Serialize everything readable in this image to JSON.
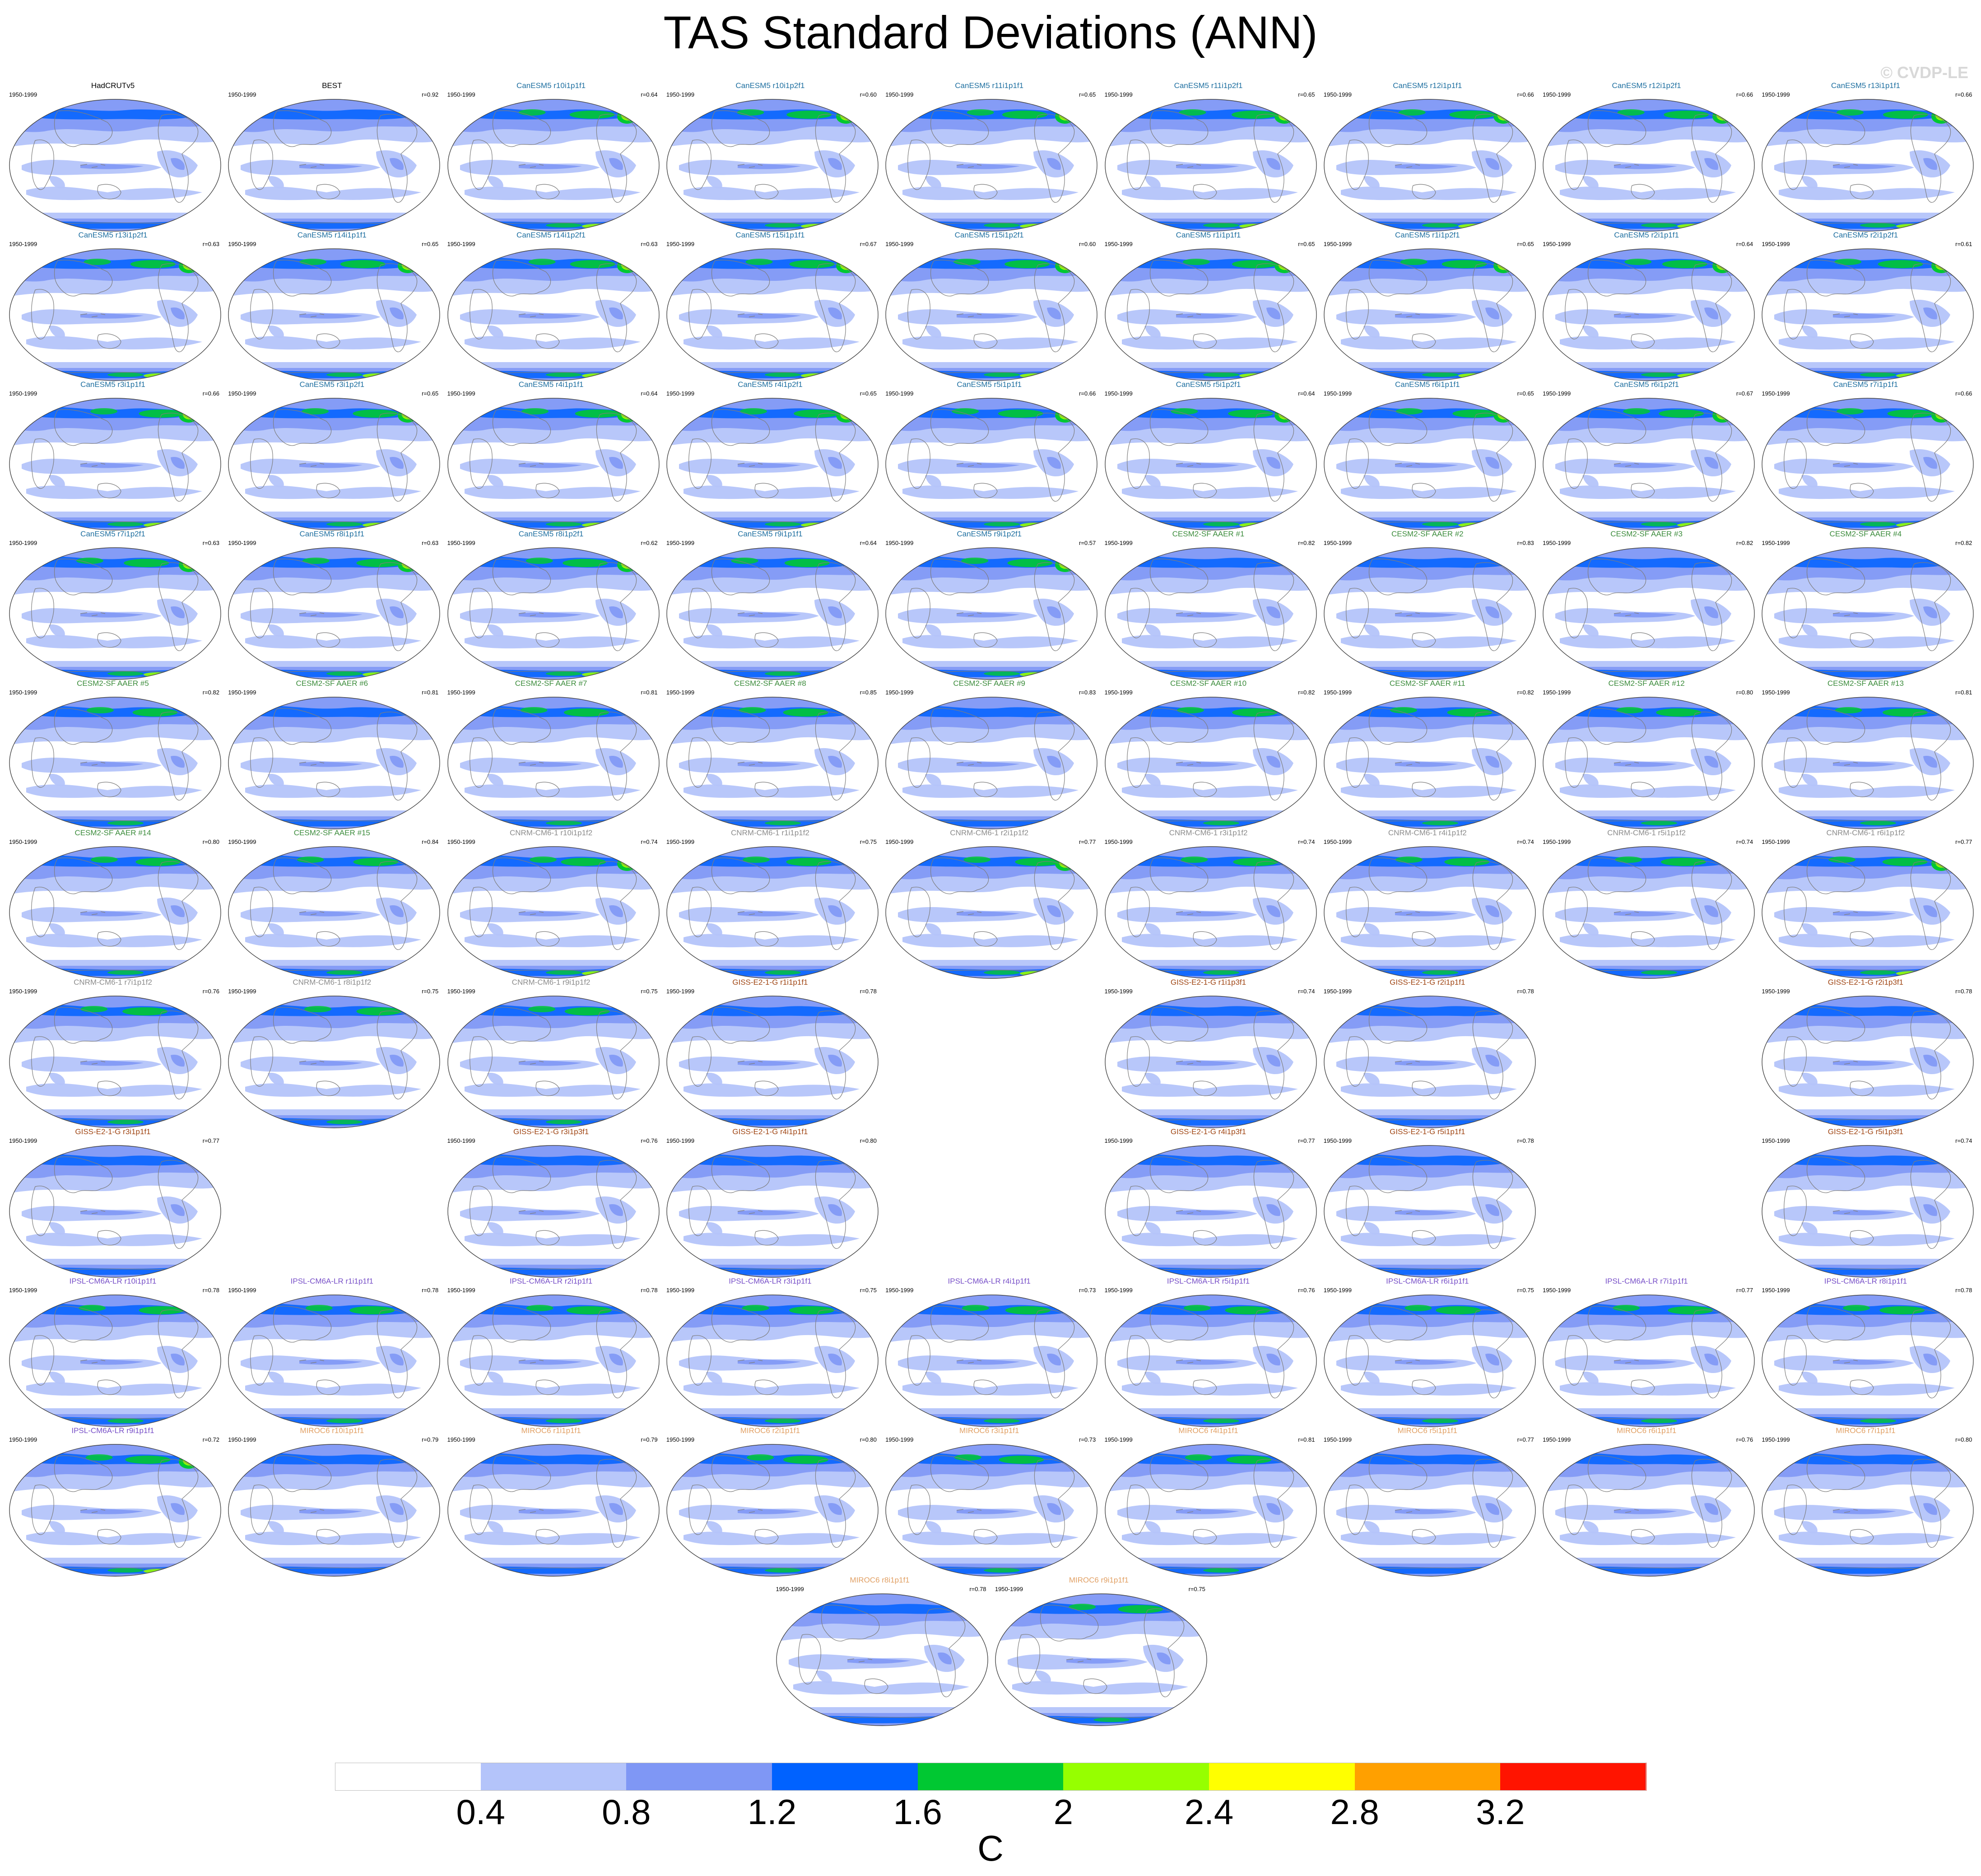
{
  "title": "TAS Standard Deviations (ANN)",
  "copyright": "© CVDP-LE",
  "units": "C",
  "colorbar": {
    "labels": [
      "0.4",
      "0.8",
      "1.2",
      "1.6",
      "2",
      "2.4",
      "2.8",
      "3.2"
    ],
    "colors": [
      "#ffffff",
      "#b4c4fa",
      "#7f97f5",
      "#0062ff",
      "#00c832",
      "#96ff00",
      "#ffff00",
      "#ffa000",
      "#ff1400"
    ]
  },
  "group_colors": {
    "obs": "#000000",
    "canesm5": "#1e6fa0",
    "cesm2": "#3c8c3c",
    "cnrm": "#8c8c8c",
    "giss": "#a04614",
    "ipsl": "#7850c8",
    "miroc6": "#e1a064"
  },
  "panels": [
    {
      "title": "HadCRUTv5",
      "years": "1950-1999",
      "r": "",
      "group": "obs",
      "row": 0,
      "col": 0,
      "hot": 0
    },
    {
      "title": "BEST",
      "years": "1950-1999",
      "r": "r=0.92",
      "group": "obs",
      "row": 0,
      "col": 1,
      "hot": 0
    },
    {
      "title": "CanESM5 r10i1p1f1",
      "years": "1950-1999",
      "r": "r=0.64",
      "group": "canesm5",
      "row": 0,
      "col": 2,
      "hot": 2
    },
    {
      "title": "CanESM5 r10i1p2f1",
      "years": "1950-1999",
      "r": "r=0.60",
      "group": "canesm5",
      "row": 0,
      "col": 3,
      "hot": 3
    },
    {
      "title": "CanESM5 r11i1p1f1",
      "years": "1950-1999",
      "r": "r=0.65",
      "group": "canesm5",
      "row": 0,
      "col": 4,
      "hot": 2
    },
    {
      "title": "CanESM5 r11i1p2f1",
      "years": "1950-1999",
      "r": "r=0.65",
      "group": "canesm5",
      "row": 0,
      "col": 5,
      "hot": 2
    },
    {
      "title": "CanESM5 r12i1p1f1",
      "years": "1950-1999",
      "r": "r=0.66",
      "group": "canesm5",
      "row": 0,
      "col": 6,
      "hot": 2
    },
    {
      "title": "CanESM5 r12i1p2f1",
      "years": "1950-1999",
      "r": "r=0.66",
      "group": "canesm5",
      "row": 0,
      "col": 7,
      "hot": 2
    },
    {
      "title": "CanESM5 r13i1p1f1",
      "years": "1950-1999",
      "r": "r=0.66",
      "group": "canesm5",
      "row": 0,
      "col": 8,
      "hot": 3
    },
    {
      "title": "CanESM5 r13i1p2f1",
      "years": "1950-1999",
      "r": "r=0.63",
      "group": "canesm5",
      "row": 1,
      "col": 0,
      "hot": 2
    },
    {
      "title": "CanESM5 r14i1p1f1",
      "years": "1950-1999",
      "r": "r=0.65",
      "group": "canesm5",
      "row": 1,
      "col": 1,
      "hot": 2
    },
    {
      "title": "CanESM5 r14i1p2f1",
      "years": "1950-1999",
      "r": "r=0.63",
      "group": "canesm5",
      "row": 1,
      "col": 2,
      "hot": 2
    },
    {
      "title": "CanESM5 r15i1p1f1",
      "years": "1950-1999",
      "r": "r=0.67",
      "group": "canesm5",
      "row": 1,
      "col": 3,
      "hot": 2
    },
    {
      "title": "CanESM5 r15i1p2f1",
      "years": "1950-1999",
      "r": "r=0.60",
      "group": "canesm5",
      "row": 1,
      "col": 4,
      "hot": 3
    },
    {
      "title": "CanESM5 r1i1p1f1",
      "years": "1950-1999",
      "r": "r=0.65",
      "group": "canesm5",
      "row": 1,
      "col": 5,
      "hot": 2
    },
    {
      "title": "CanESM5 r1i1p2f1",
      "years": "1950-1999",
      "r": "r=0.65",
      "group": "canesm5",
      "row": 1,
      "col": 6,
      "hot": 2
    },
    {
      "title": "CanESM5 r2i1p1f1",
      "years": "1950-1999",
      "r": "r=0.64",
      "group": "canesm5",
      "row": 1,
      "col": 7,
      "hot": 3
    },
    {
      "title": "CanESM5 r2i1p2f1",
      "years": "1950-1999",
      "r": "r=0.61",
      "group": "canesm5",
      "row": 1,
      "col": 8,
      "hot": 3
    },
    {
      "title": "CanESM5 r3i1p1f1",
      "years": "1950-1999",
      "r": "r=0.66",
      "group": "canesm5",
      "row": 2,
      "col": 0,
      "hot": 2
    },
    {
      "title": "CanESM5 r3i1p2f1",
      "years": "1950-1999",
      "r": "r=0.65",
      "group": "canesm5",
      "row": 2,
      "col": 1,
      "hot": 2
    },
    {
      "title": "CanESM5 r4i1p1f1",
      "years": "1950-1999",
      "r": "r=0.64",
      "group": "canesm5",
      "row": 2,
      "col": 2,
      "hot": 2
    },
    {
      "title": "CanESM5 r4i1p2f1",
      "years": "1950-1999",
      "r": "r=0.65",
      "group": "canesm5",
      "row": 2,
      "col": 3,
      "hot": 2
    },
    {
      "title": "CanESM5 r5i1p1f1",
      "years": "1950-1999",
      "r": "r=0.66",
      "group": "canesm5",
      "row": 2,
      "col": 4,
      "hot": 2
    },
    {
      "title": "CanESM5 r5i1p2f1",
      "years": "1950-1999",
      "r": "r=0.64",
      "group": "canesm5",
      "row": 2,
      "col": 5,
      "hot": 2
    },
    {
      "title": "CanESM5 r6i1p1f1",
      "years": "1950-1999",
      "r": "r=0.65",
      "group": "canesm5",
      "row": 2,
      "col": 6,
      "hot": 2
    },
    {
      "title": "CanESM5 r6i1p2f1",
      "years": "1950-1999",
      "r": "r=0.67",
      "group": "canesm5",
      "row": 2,
      "col": 7,
      "hot": 2
    },
    {
      "title": "CanESM5 r7i1p1f1",
      "years": "1950-1999",
      "r": "r=0.66",
      "group": "canesm5",
      "row": 2,
      "col": 8,
      "hot": 2
    },
    {
      "title": "CanESM5 r7i1p2f1",
      "years": "1950-1999",
      "r": "r=0.63",
      "group": "canesm5",
      "row": 3,
      "col": 0,
      "hot": 2
    },
    {
      "title": "CanESM5 r8i1p1f1",
      "years": "1950-1999",
      "r": "r=0.63",
      "group": "canesm5",
      "row": 3,
      "col": 1,
      "hot": 2
    },
    {
      "title": "CanESM5 r8i1p2f1",
      "years": "1950-1999",
      "r": "r=0.62",
      "group": "canesm5",
      "row": 3,
      "col": 2,
      "hot": 3
    },
    {
      "title": "CanESM5 r9i1p1f1",
      "years": "1950-1999",
      "r": "r=0.64",
      "group": "canesm5",
      "row": 3,
      "col": 3,
      "hot": 1
    },
    {
      "title": "CanESM5 r9i1p2f1",
      "years": "1950-1999",
      "r": "r=0.57",
      "group": "canesm5",
      "row": 3,
      "col": 4,
      "hot": 3
    },
    {
      "title": "CESM2-SF AAER #1",
      "years": "1950-1999",
      "r": "r=0.82",
      "group": "cesm2",
      "row": 3,
      "col": 5,
      "hot": 0
    },
    {
      "title": "CESM2-SF AAER #2",
      "years": "1950-1999",
      "r": "r=0.83",
      "group": "cesm2",
      "row": 3,
      "col": 6,
      "hot": 0
    },
    {
      "title": "CESM2-SF AAER #3",
      "years": "1950-1999",
      "r": "r=0.82",
      "group": "cesm2",
      "row": 3,
      "col": 7,
      "hot": 0
    },
    {
      "title": "CESM2-SF AAER #4",
      "years": "1950-1999",
      "r": "r=0.82",
      "group": "cesm2",
      "row": 3,
      "col": 8,
      "hot": 0
    },
    {
      "title": "CESM2-SF AAER #5",
      "years": "1950-1999",
      "r": "r=0.82",
      "group": "cesm2",
      "row": 4,
      "col": 0,
      "hot": 1
    },
    {
      "title": "CESM2-SF AAER #6",
      "years": "1950-1999",
      "r": "r=0.81",
      "group": "cesm2",
      "row": 4,
      "col": 1,
      "hot": 0
    },
    {
      "title": "CESM2-SF AAER #7",
      "years": "1950-1999",
      "r": "r=0.81",
      "group": "cesm2",
      "row": 4,
      "col": 2,
      "hot": 1
    },
    {
      "title": "CESM2-SF AAER #8",
      "years": "1950-1999",
      "r": "r=0.85",
      "group": "cesm2",
      "row": 4,
      "col": 3,
      "hot": 1
    },
    {
      "title": "CESM2-SF AAER #9",
      "years": "1950-1999",
      "r": "r=0.83",
      "group": "cesm2",
      "row": 4,
      "col": 4,
      "hot": 0
    },
    {
      "title": "CESM2-SF AAER #10",
      "years": "1950-1999",
      "r": "r=0.82",
      "group": "cesm2",
      "row": 4,
      "col": 5,
      "hot": 1
    },
    {
      "title": "CESM2-SF AAER #11",
      "years": "1950-1999",
      "r": "r=0.82",
      "group": "cesm2",
      "row": 4,
      "col": 6,
      "hot": 1
    },
    {
      "title": "CESM2-SF AAER #12",
      "years": "1950-1999",
      "r": "r=0.80",
      "group": "cesm2",
      "row": 4,
      "col": 7,
      "hot": 1
    },
    {
      "title": "CESM2-SF AAER #13",
      "years": "1950-1999",
      "r": "r=0.81",
      "group": "cesm2",
      "row": 4,
      "col": 8,
      "hot": 1
    },
    {
      "title": "CESM2-SF AAER #14",
      "years": "1950-1999",
      "r": "r=0.80",
      "group": "cesm2",
      "row": 5,
      "col": 0,
      "hot": 1
    },
    {
      "title": "CESM2-SF AAER #15",
      "years": "1950-1999",
      "r": "r=0.84",
      "group": "cesm2",
      "row": 5,
      "col": 1,
      "hot": 1
    },
    {
      "title": "CNRM-CM6-1 r10i1p1f2",
      "years": "1950-1999",
      "r": "r=0.74",
      "group": "cnrm",
      "row": 5,
      "col": 2,
      "hot": 2
    },
    {
      "title": "CNRM-CM6-1 r1i1p1f2",
      "years": "1950-1999",
      "r": "r=0.75",
      "group": "cnrm",
      "row": 5,
      "col": 3,
      "hot": 1
    },
    {
      "title": "CNRM-CM6-1 r2i1p1f2",
      "years": "1950-1999",
      "r": "r=0.77",
      "group": "cnrm",
      "row": 5,
      "col": 4,
      "hot": 2
    },
    {
      "title": "CNRM-CM6-1 r3i1p1f2",
      "years": "1950-1999",
      "r": "r=0.74",
      "group": "cnrm",
      "row": 5,
      "col": 5,
      "hot": 1
    },
    {
      "title": "CNRM-CM6-1 r4i1p1f2",
      "years": "1950-1999",
      "r": "r=0.74",
      "group": "cnrm",
      "row": 5,
      "col": 6,
      "hot": 1
    },
    {
      "title": "CNRM-CM6-1 r5i1p1f2",
      "years": "1950-1999",
      "r": "r=0.74",
      "group": "cnrm",
      "row": 5,
      "col": 7,
      "hot": 1
    },
    {
      "title": "CNRM-CM6-1 r6i1p1f2",
      "years": "1950-1999",
      "r": "r=0.77",
      "group": "cnrm",
      "row": 5,
      "col": 8,
      "hot": 2
    },
    {
      "title": "CNRM-CM6-1 r7i1p1f2",
      "years": "1950-1999",
      "r": "r=0.76",
      "group": "cnrm",
      "row": 6,
      "col": 0,
      "hot": 1
    },
    {
      "title": "CNRM-CM6-1 r8i1p1f2",
      "years": "1950-1999",
      "r": "r=0.75",
      "group": "cnrm",
      "row": 6,
      "col": 1,
      "hot": 1
    },
    {
      "title": "CNRM-CM6-1 r9i1p1f2",
      "years": "1950-1999",
      "r": "r=0.75",
      "group": "cnrm",
      "row": 6,
      "col": 2,
      "hot": 1
    },
    {
      "title": "GISS-E2-1-G r1i1p1f1",
      "years": "1950-1999",
      "r": "r=0.78",
      "group": "giss",
      "row": 6,
      "col": 3,
      "hot": 0
    },
    {
      "title": "GISS-E2-1-G r1i1p3f1",
      "years": "1950-1999",
      "r": "r=0.74",
      "group": "giss",
      "row": 6,
      "col": 5,
      "hot": 0
    },
    {
      "title": "GISS-E2-1-G r2i1p1f1",
      "years": "1950-1999",
      "r": "r=0.78",
      "group": "giss",
      "row": 6,
      "col": 6,
      "hot": 0
    },
    {
      "title": "GISS-E2-1-G r2i1p3f1",
      "years": "1950-1999",
      "r": "r=0.78",
      "group": "giss",
      "row": 6,
      "col": 8,
      "hot": 0
    },
    {
      "title": "GISS-E2-1-G r3i1p1f1",
      "years": "1950-1999",
      "r": "r=0.77",
      "group": "giss",
      "row": 7,
      "col": 0,
      "hot": 0
    },
    {
      "title": "GISS-E2-1-G r3i1p3f1",
      "years": "1950-1999",
      "r": "r=0.76",
      "group": "giss",
      "row": 7,
      "col": 2,
      "hot": 0
    },
    {
      "title": "GISS-E2-1-G r4i1p1f1",
      "years": "1950-1999",
      "r": "r=0.80",
      "group": "giss",
      "row": 7,
      "col": 3,
      "hot": 0
    },
    {
      "title": "GISS-E2-1-G r4i1p3f1",
      "years": "1950-1999",
      "r": "r=0.77",
      "group": "giss",
      "row": 7,
      "col": 5,
      "hot": 0
    },
    {
      "title": "GISS-E2-1-G r5i1p1f1",
      "years": "1950-1999",
      "r": "r=0.78",
      "group": "giss",
      "row": 7,
      "col": 6,
      "hot": 0
    },
    {
      "title": "GISS-E2-1-G r5i1p3f1",
      "years": "1950-1999",
      "r": "r=0.74",
      "group": "giss",
      "row": 7,
      "col": 8,
      "hot": 0
    },
    {
      "title": "IPSL-CM6A-LR r10i1p1f1",
      "years": "1950-1999",
      "r": "r=0.78",
      "group": "ipsl",
      "row": 8,
      "col": 0,
      "hot": 1
    },
    {
      "title": "IPSL-CM6A-LR r1i1p1f1",
      "years": "1950-1999",
      "r": "r=0.78",
      "group": "ipsl",
      "row": 8,
      "col": 1,
      "hot": 1
    },
    {
      "title": "IPSL-CM6A-LR r2i1p1f1",
      "years": "1950-1999",
      "r": "r=0.78",
      "group": "ipsl",
      "row": 8,
      "col": 2,
      "hot": 1
    },
    {
      "title": "IPSL-CM6A-LR r3i1p1f1",
      "years": "1950-1999",
      "r": "r=0.75",
      "group": "ipsl",
      "row": 8,
      "col": 3,
      "hot": 1
    },
    {
      "title": "IPSL-CM6A-LR r4i1p1f1",
      "years": "1950-1999",
      "r": "r=0.73",
      "group": "ipsl",
      "row": 8,
      "col": 4,
      "hot": 1
    },
    {
      "title": "IPSL-CM6A-LR r5i1p1f1",
      "years": "1950-1999",
      "r": "r=0.76",
      "group": "ipsl",
      "row": 8,
      "col": 5,
      "hot": 1
    },
    {
      "title": "IPSL-CM6A-LR r6i1p1f1",
      "years": "1950-1999",
      "r": "r=0.75",
      "group": "ipsl",
      "row": 8,
      "col": 6,
      "hot": 1
    },
    {
      "title": "IPSL-CM6A-LR r7i1p1f1",
      "years": "1950-1999",
      "r": "r=0.77",
      "group": "ipsl",
      "row": 8,
      "col": 7,
      "hot": 1
    },
    {
      "title": "IPSL-CM6A-LR r8i1p1f1",
      "years": "1950-1999",
      "r": "r=0.78",
      "group": "ipsl",
      "row": 8,
      "col": 8,
      "hot": 1
    },
    {
      "title": "IPSL-CM6A-LR r9i1p1f1",
      "years": "1950-1999",
      "r": "r=0.72",
      "group": "ipsl",
      "row": 9,
      "col": 0,
      "hot": 2
    },
    {
      "title": "MIROC6 r10i1p1f1",
      "years": "1950-1999",
      "r": "r=0.79",
      "group": "miroc6",
      "row": 9,
      "col": 1,
      "hot": 0
    },
    {
      "title": "MIROC6 r1i1p1f1",
      "years": "1950-1999",
      "r": "r=0.79",
      "group": "miroc6",
      "row": 9,
      "col": 2,
      "hot": 0
    },
    {
      "title": "MIROC6 r2i1p1f1",
      "years": "1950-1999",
      "r": "r=0.80",
      "group": "miroc6",
      "row": 9,
      "col": 3,
      "hot": 1
    },
    {
      "title": "MIROC6 r3i1p1f1",
      "years": "1950-1999",
      "r": "r=0.73",
      "group": "miroc6",
      "row": 9,
      "col": 4,
      "hot": 1
    },
    {
      "title": "MIROC6 r4i1p1f1",
      "years": "1950-1999",
      "r": "r=0.81",
      "group": "miroc6",
      "row": 9,
      "col": 5,
      "hot": 1
    },
    {
      "title": "MIROC6 r5i1p1f1",
      "years": "1950-1999",
      "r": "r=0.77",
      "group": "miroc6",
      "row": 9,
      "col": 6,
      "hot": 0
    },
    {
      "title": "MIROC6 r6i1p1f1",
      "years": "1950-1999",
      "r": "r=0.76",
      "group": "miroc6",
      "row": 9,
      "col": 7,
      "hot": 0
    },
    {
      "title": "MIROC6 r7i1p1f1",
      "years": "1950-1999",
      "r": "r=0.80",
      "group": "miroc6",
      "row": 9,
      "col": 8,
      "hot": 0
    },
    {
      "title": "MIROC6 r8i1p1f1",
      "years": "1950-1999",
      "r": "r=0.78",
      "group": "miroc6",
      "row": 10,
      "col": 3.5,
      "hot": 0
    },
    {
      "title": "MIROC6 r9i1p1f1",
      "years": "1950-1999",
      "r": "r=0.75",
      "group": "miroc6",
      "row": 10,
      "col": 4.5,
      "hot": 1
    }
  ]
}
